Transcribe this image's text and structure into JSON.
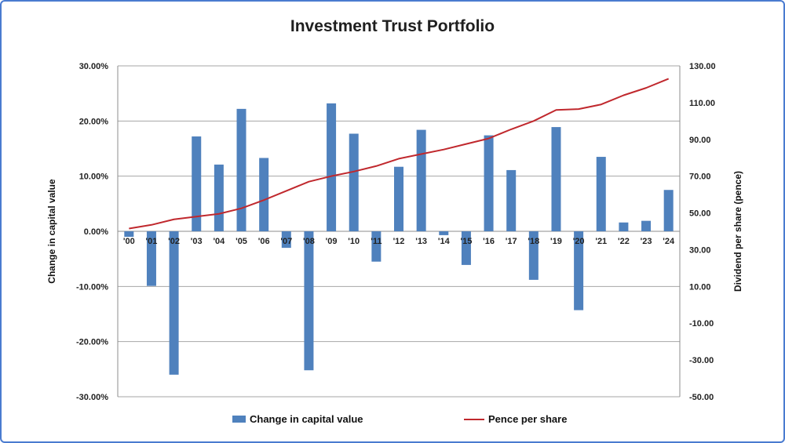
{
  "chart_data": {
    "type": "bar+line",
    "title": "Investment Trust Portfolio",
    "categories": [
      "'00",
      "'01",
      "'02",
      "'03",
      "'04",
      "'05",
      "'06",
      "'07",
      "'08",
      "'09",
      "'10",
      "'11",
      "'12",
      "'13",
      "'14",
      "'15",
      "'16",
      "'17",
      "'18",
      "'19",
      "'20",
      "'21",
      "'22",
      "'23",
      "'24"
    ],
    "series": [
      {
        "name": "Change in capital value",
        "kind": "bar",
        "axis": "left",
        "color": "#4f81bd",
        "values": [
          -1.0,
          -9.9,
          -26.0,
          17.2,
          12.1,
          22.2,
          13.3,
          -3.0,
          -25.2,
          23.2,
          17.7,
          -5.5,
          11.7,
          18.4,
          -0.7,
          -6.1,
          17.4,
          11.1,
          -8.8,
          18.9,
          -14.3,
          13.5,
          1.6,
          1.9,
          7.5
        ]
      },
      {
        "name": "Pence per share",
        "kind": "line",
        "axis": "right",
        "color": "#c0282d",
        "values": [
          41.5,
          43.5,
          46.5,
          48.0,
          49.5,
          52.5,
          57.0,
          62.0,
          67.0,
          70.0,
          72.5,
          75.5,
          79.5,
          82.0,
          84.5,
          87.5,
          90.5,
          95.5,
          100.0,
          106.0,
          106.5,
          109.0,
          114.0,
          118.0,
          123.0
        ]
      }
    ],
    "ylabel": "Change in capital value",
    "y2label": "Dividend per share (pence)",
    "ylim": [
      -30,
      30
    ],
    "y2lim": [
      -50,
      130
    ],
    "yticks": [
      "-30.00%",
      "-20.00%",
      "-10.00%",
      "0.00%",
      "10.00%",
      "20.00%",
      "30.00%"
    ],
    "y2ticks": [
      "-50.00",
      "-30.00",
      "-10.00",
      "10.00",
      "30.00",
      "50.00",
      "70.00",
      "90.00",
      "110.00",
      "130.00"
    ],
    "grid": true,
    "legend": "bottom"
  }
}
